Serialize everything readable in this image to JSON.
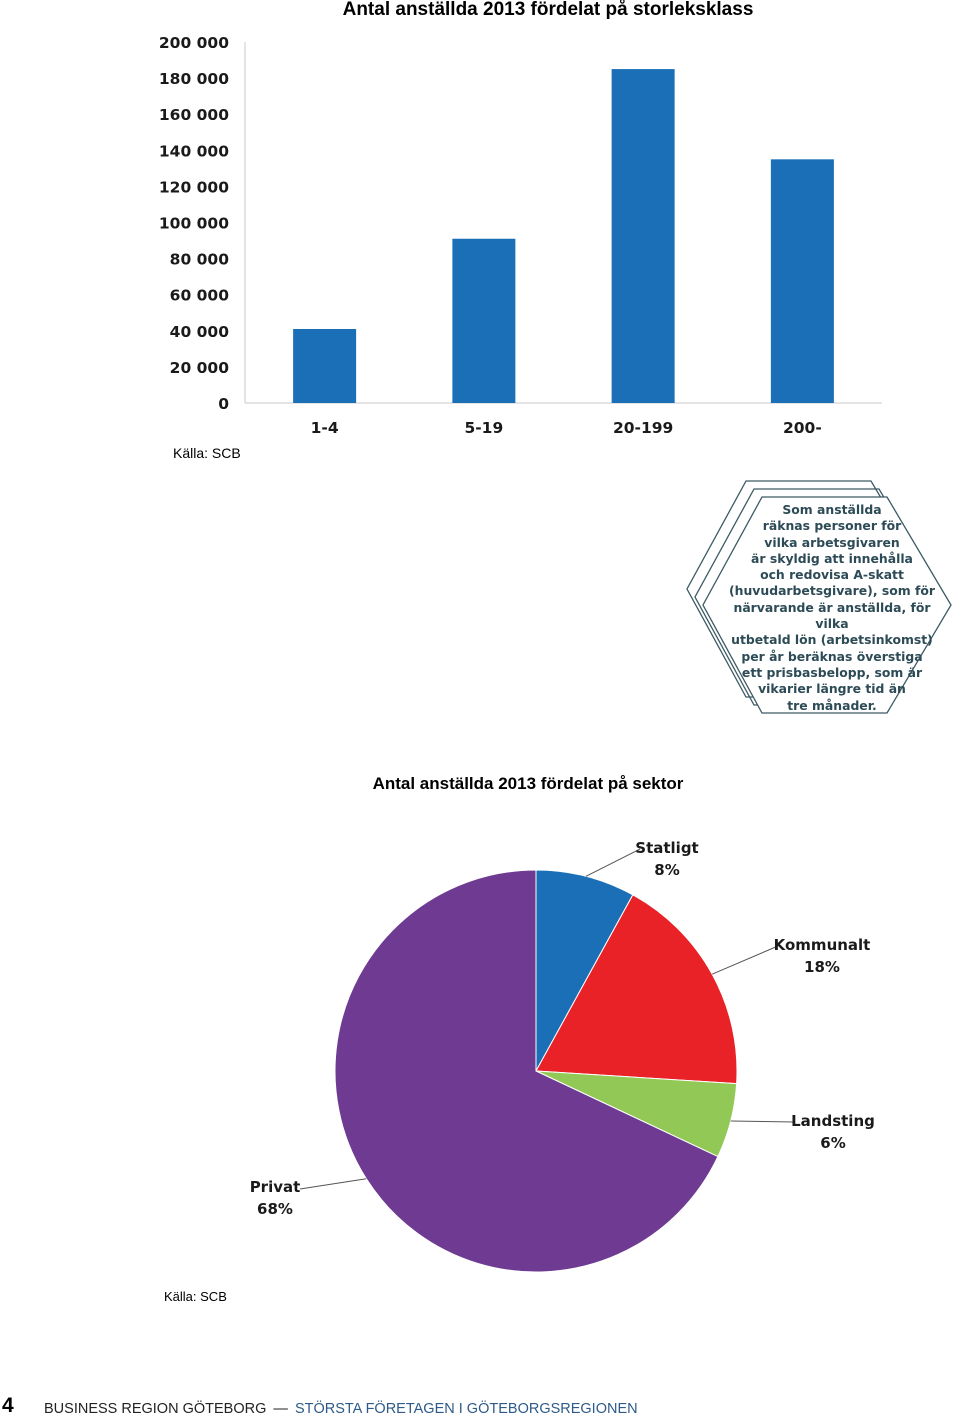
{
  "bar_chart": {
    "title": "Antal anställda 2013 fördelat på storleksklass",
    "source": "Källa: SCB"
  },
  "info_box": {
    "lines": [
      "Som anställda",
      "räknas personer för",
      "vilka arbetsgivaren",
      "är skyldig att innehålla",
      "och redovisa A-skatt",
      "(huvudarbetsgivare), som för",
      "närvarande är anställda, för vilka",
      "utbetald lön (arbetsinkomst)",
      "per år beräknas överstiga",
      "ett prisbasbelopp, som är",
      "vikarier längre tid än",
      "tre månader."
    ],
    "border_color": "#3d5a64",
    "text_color": "#2d4b56"
  },
  "pie_chart": {
    "title": "Antal anställda 2013 fördelat på sektor",
    "source": "Källa: SCB"
  },
  "footer": {
    "page_number": "4",
    "brand": "BUSINESS REGION GÖTEBORG",
    "separator": "—",
    "subtitle": "STÖRSTA FÖRETAGEN I GÖTEBORGSREGIONEN"
  },
  "chart_data": [
    {
      "type": "bar",
      "title": "Antal anställda 2013 fördelat på storleksklass",
      "categories": [
        "1-4",
        "5-19",
        "20-199",
        "200-"
      ],
      "values": [
        41000,
        91000,
        185000,
        135000
      ],
      "yticks": [
        "0",
        "20 000",
        "40 000",
        "60 000",
        "80 000",
        "100 000",
        "120 000",
        "140 000",
        "160 000",
        "180 000",
        "200 000"
      ],
      "ylim": [
        0,
        200000
      ],
      "color": "#1b6fb7",
      "grid": false,
      "legend": "none"
    },
    {
      "type": "pie",
      "title": "Antal anställda 2013 fördelat på sektor",
      "slices": [
        {
          "name": "Statligt",
          "label": "8%",
          "value": 8,
          "color": "#1b6fb7"
        },
        {
          "name": "Kommunalt",
          "label": "18%",
          "value": 18,
          "color": "#e82226"
        },
        {
          "name": "Landsting",
          "label": "6%",
          "value": 6,
          "color": "#92c856"
        },
        {
          "name": "Privat",
          "label": "68%",
          "value": 68,
          "color": "#6e3a92"
        }
      ],
      "legend": "callout-labels"
    }
  ]
}
